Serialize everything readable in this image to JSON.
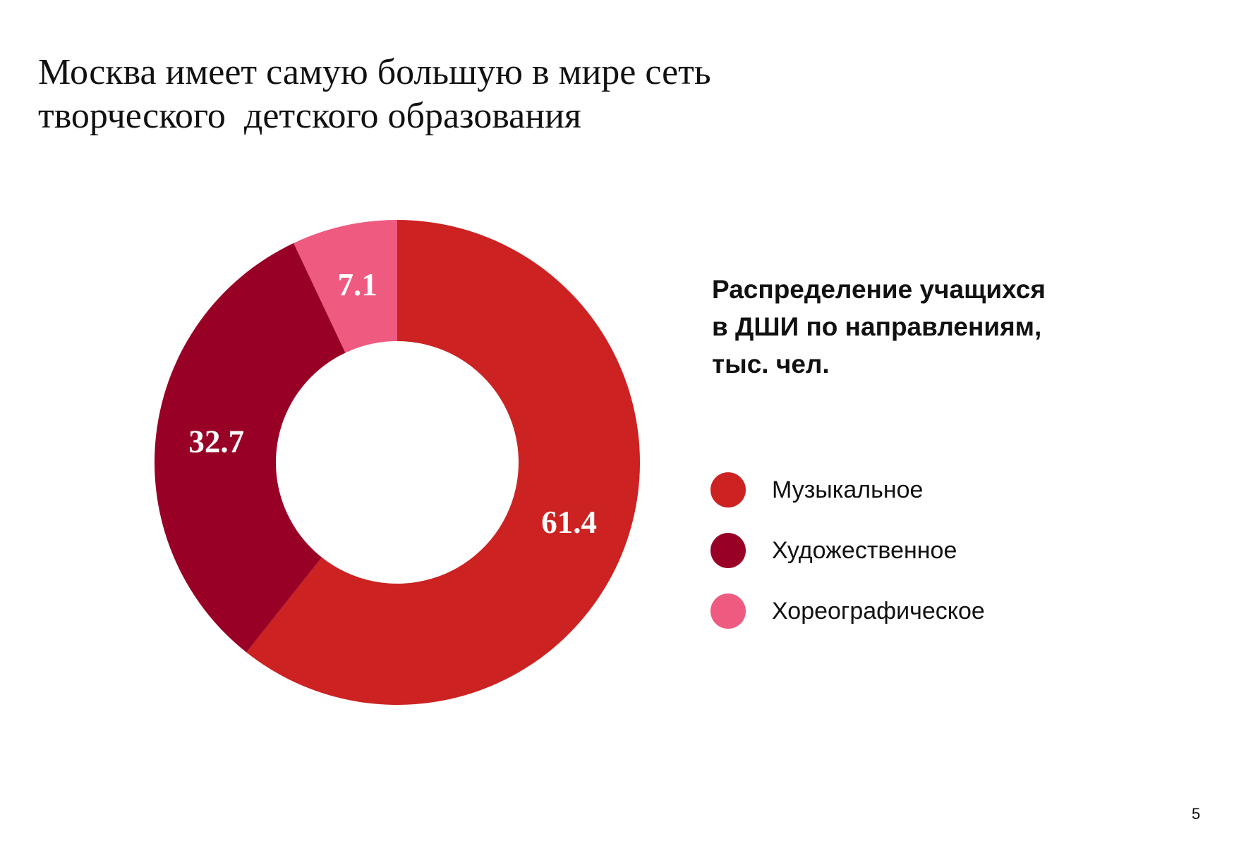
{
  "title_lines": [
    "Москва имеет самую большую в мире сеть",
    "творческого  детского образования"
  ],
  "page_number": "5",
  "chart_data": {
    "type": "pie",
    "donut": true,
    "title": "Распределение учащихся в ДШИ по направлениям, тыс. чел.",
    "title_lines": [
      "Распределение учащихся",
      "в ДШИ по направлениям,",
      "тыс. чел."
    ],
    "legend_position": "right",
    "categories": [
      "Музыкальное",
      "Художественное",
      "Хореографическое"
    ],
    "values": [
      61.4,
      32.7,
      7.1
    ],
    "labels": [
      "61.4",
      "32.7",
      "7.1"
    ],
    "colors": [
      "#cc2222",
      "#990026",
      "#ee5a80"
    ]
  }
}
